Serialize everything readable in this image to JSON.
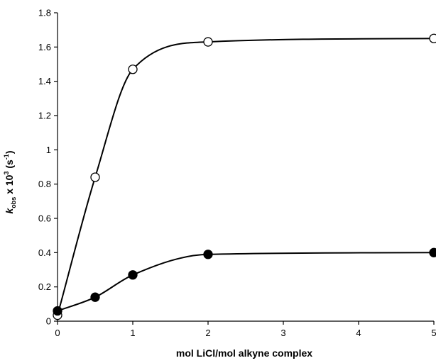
{
  "chart_data": {
    "type": "scatter",
    "xlabel": "mol LiCl/mol alkyne complex",
    "ylabel": {
      "symbol": "k",
      "subscript": "obs",
      "mid": " x 10",
      "superscript": "3",
      "unit_open": " (s",
      "unit_superscript": "-1",
      "unit_close": ")"
    },
    "xlim": [
      0,
      5
    ],
    "ylim": [
      0,
      1.8
    ],
    "x_ticks": [
      "0",
      "1",
      "2",
      "3",
      "4",
      "5"
    ],
    "y_ticks": [
      "0",
      "0.2",
      "0.4",
      "0.6",
      "0.8",
      "1",
      "1.2",
      "1.4",
      "1.6",
      "1.8"
    ],
    "grid": false,
    "series": [
      {
        "marker": "open-circle",
        "color": "#000000",
        "x": [
          0,
          0.5,
          1,
          2,
          5
        ],
        "y": [
          0.035,
          0.84,
          1.47,
          1.63,
          1.65
        ]
      },
      {
        "marker": "filled-circle",
        "color": "#000000",
        "x": [
          0,
          0.5,
          1,
          2,
          5
        ],
        "y": [
          0.06,
          0.14,
          0.27,
          0.39,
          0.4
        ]
      }
    ]
  }
}
